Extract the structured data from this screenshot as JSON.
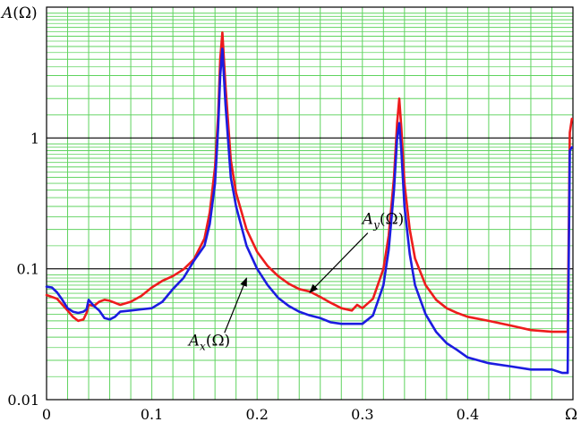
{
  "chart_data": {
    "type": "line",
    "ylabel": "A(Ω)",
    "xlabel": "Ω",
    "y_scale": "log",
    "ylim": [
      0.01,
      10
    ],
    "xlim": [
      0,
      0.5
    ],
    "x_ticks": [
      "0",
      "0.1",
      "0.2",
      "0.3",
      "0.4"
    ],
    "x_tick_values": [
      0,
      0.1,
      0.2,
      0.3,
      0.4
    ],
    "y_ticks": [
      "0.01",
      "0.1",
      "1"
    ],
    "y_tick_values": [
      0.01,
      0.1,
      1
    ],
    "grid": true,
    "colors": {
      "grid": "#5fd35f",
      "major": "#000000",
      "ax": "#ee1c1c",
      "ay": "#1c1ce0"
    },
    "series": [
      {
        "name": "A_y(Ω)",
        "color": "#ee1c1c",
        "x": [
          0,
          0.01,
          0.02,
          0.025,
          0.03,
          0.035,
          0.038,
          0.04,
          0.045,
          0.05,
          0.055,
          0.06,
          0.07,
          0.08,
          0.09,
          0.1,
          0.11,
          0.12,
          0.13,
          0.14,
          0.15,
          0.155,
          0.16,
          0.163,
          0.165,
          0.167,
          0.17,
          0.175,
          0.18,
          0.19,
          0.2,
          0.21,
          0.22,
          0.23,
          0.24,
          0.25,
          0.26,
          0.27,
          0.28,
          0.29,
          0.295,
          0.3,
          0.31,
          0.32,
          0.325,
          0.33,
          0.333,
          0.335,
          0.337,
          0.34,
          0.345,
          0.35,
          0.36,
          0.37,
          0.38,
          0.39,
          0.4,
          0.42,
          0.44,
          0.46,
          0.48,
          0.49,
          0.495,
          0.497,
          0.499
        ],
        "values": [
          0.063,
          0.059,
          0.048,
          0.043,
          0.04,
          0.041,
          0.046,
          0.053,
          0.052,
          0.056,
          0.058,
          0.057,
          0.053,
          0.056,
          0.062,
          0.072,
          0.081,
          0.088,
          0.099,
          0.118,
          0.17,
          0.27,
          0.6,
          1.5,
          4,
          6.4,
          2.5,
          0.68,
          0.38,
          0.2,
          0.135,
          0.105,
          0.088,
          0.077,
          0.07,
          0.067,
          0.061,
          0.055,
          0.05,
          0.048,
          0.053,
          0.05,
          0.059,
          0.1,
          0.18,
          0.5,
          1.3,
          2,
          1.2,
          0.45,
          0.2,
          0.12,
          0.075,
          0.058,
          0.05,
          0.046,
          0.043,
          0.04,
          0.037,
          0.034,
          0.033,
          0.033,
          0.033,
          1.1,
          1.4
        ]
      },
      {
        "name": "A_x(Ω)",
        "color": "#1c1ce0",
        "x": [
          0,
          0.005,
          0.01,
          0.015,
          0.02,
          0.025,
          0.03,
          0.035,
          0.038,
          0.04,
          0.045,
          0.05,
          0.055,
          0.06,
          0.065,
          0.07,
          0.08,
          0.09,
          0.1,
          0.11,
          0.12,
          0.13,
          0.14,
          0.15,
          0.155,
          0.16,
          0.163,
          0.165,
          0.167,
          0.17,
          0.175,
          0.18,
          0.19,
          0.2,
          0.21,
          0.22,
          0.23,
          0.24,
          0.25,
          0.26,
          0.27,
          0.28,
          0.29,
          0.3,
          0.31,
          0.32,
          0.325,
          0.33,
          0.333,
          0.335,
          0.337,
          0.34,
          0.345,
          0.35,
          0.36,
          0.37,
          0.38,
          0.39,
          0.4,
          0.42,
          0.44,
          0.46,
          0.48,
          0.49,
          0.495,
          0.497,
          0.499
        ],
        "values": [
          0.073,
          0.072,
          0.066,
          0.058,
          0.05,
          0.047,
          0.046,
          0.047,
          0.049,
          0.058,
          0.052,
          0.048,
          0.042,
          0.041,
          0.043,
          0.047,
          0.048,
          0.049,
          0.05,
          0.056,
          0.07,
          0.085,
          0.115,
          0.15,
          0.22,
          0.45,
          1.2,
          3,
          4.8,
          1.8,
          0.5,
          0.3,
          0.15,
          0.1,
          0.075,
          0.06,
          0.052,
          0.047,
          0.044,
          0.042,
          0.039,
          0.038,
          0.038,
          0.038,
          0.044,
          0.075,
          0.14,
          0.4,
          1,
          1.3,
          0.8,
          0.3,
          0.13,
          0.075,
          0.045,
          0.033,
          0.027,
          0.024,
          0.021,
          0.019,
          0.018,
          0.017,
          0.017,
          0.016,
          0.016,
          0.8,
          0.85
        ]
      }
    ],
    "annotations": [
      {
        "text": "A_y(Ω)",
        "target_x": 0.25,
        "target_y": 0.066,
        "label_x": 0.3,
        "label_y": 0.22
      },
      {
        "text": "A_x(Ω)",
        "target_x": 0.19,
        "target_y": 0.085,
        "label_x": 0.135,
        "label_y": 0.026
      }
    ]
  }
}
